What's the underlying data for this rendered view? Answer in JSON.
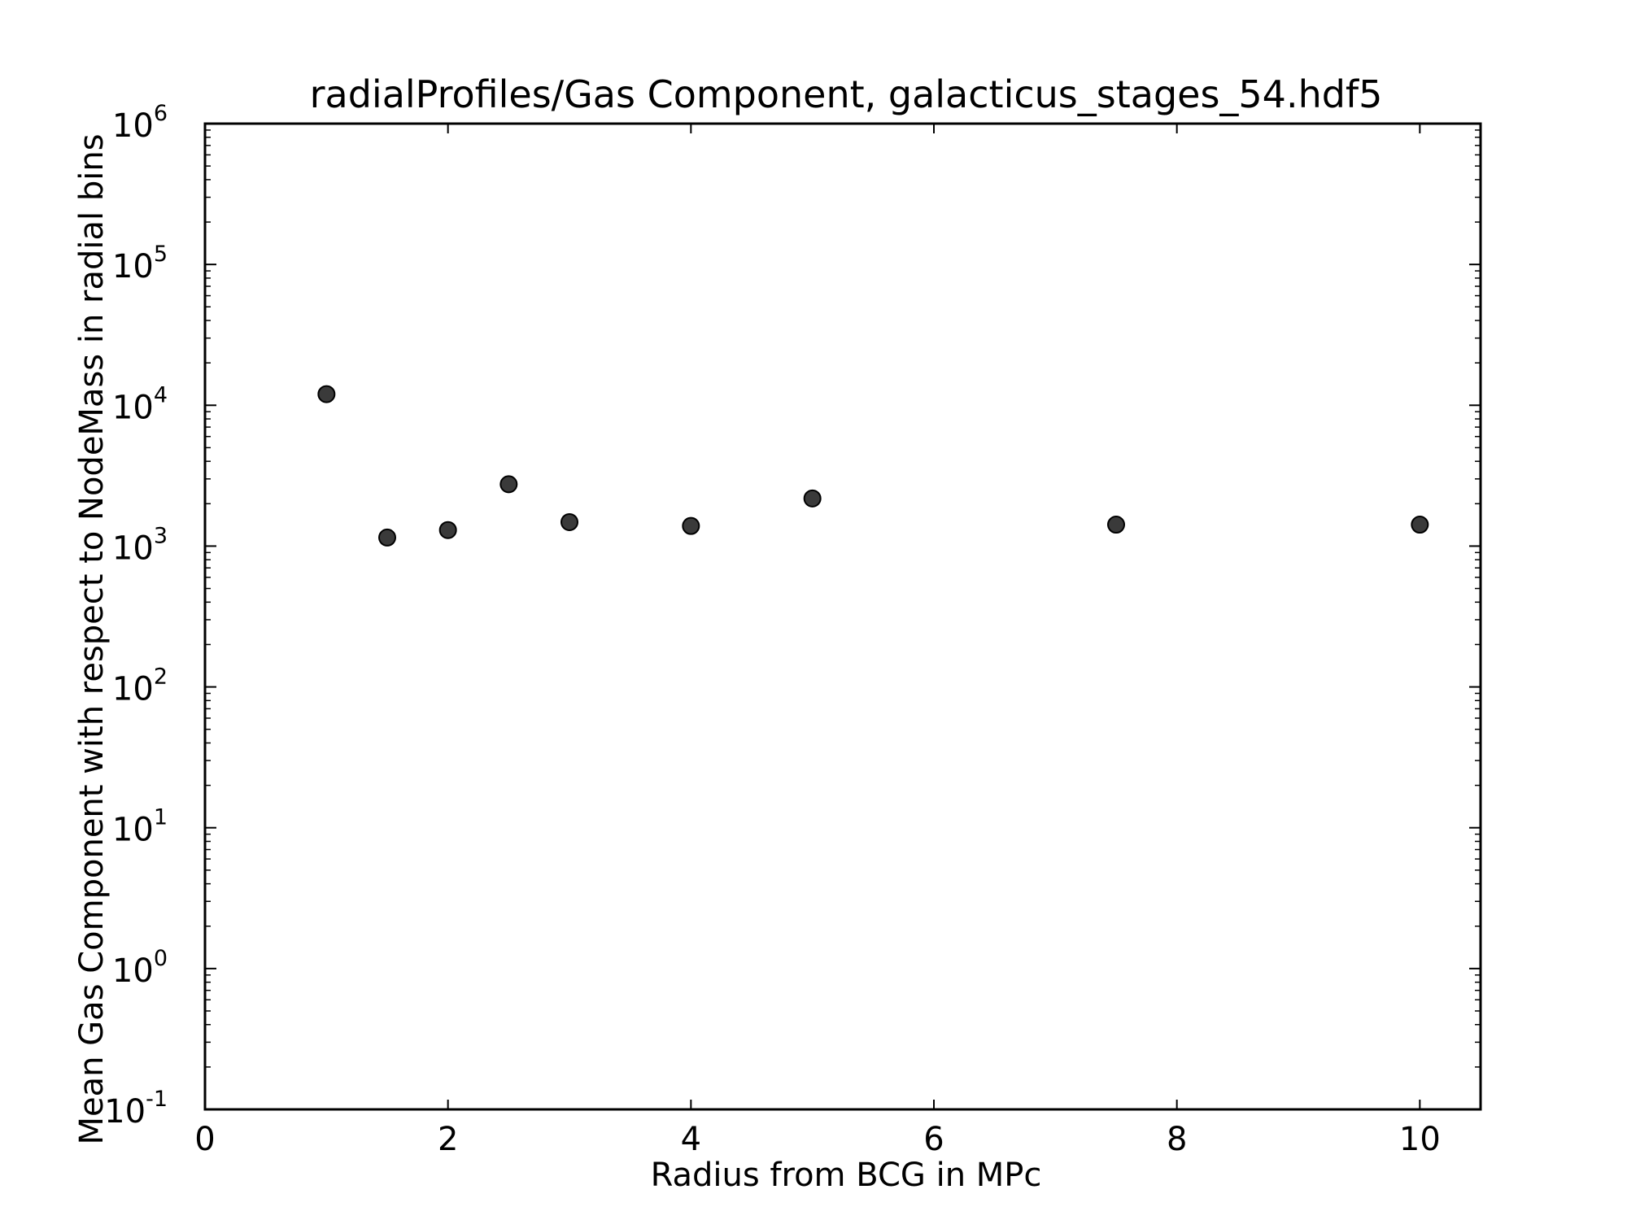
{
  "chart_data": {
    "type": "scatter",
    "title": "radialProfiles/Gas Component, galacticus_stages_54.hdf5",
    "xlabel": "Radius from BCG in MPc",
    "ylabel": "Mean Gas Component with respect to NodeMass in radial bins",
    "xlim": [
      0,
      10.5
    ],
    "ylim": [
      0.1,
      1000000
    ],
    "yscale": "log",
    "grid": false,
    "legend": "none",
    "x_ticks": [
      "0",
      "2",
      "4",
      "6",
      "8",
      "10"
    ],
    "y_ticks": [
      {
        "base": "10",
        "exp": "-1"
      },
      {
        "base": "10",
        "exp": "0"
      },
      {
        "base": "10",
        "exp": "1"
      },
      {
        "base": "10",
        "exp": "2"
      },
      {
        "base": "10",
        "exp": "3"
      },
      {
        "base": "10",
        "exp": "4"
      },
      {
        "base": "10",
        "exp": "5"
      },
      {
        "base": "10",
        "exp": "6"
      }
    ],
    "marker_color": "#3a3a3a",
    "points": [
      {
        "x": 1.0,
        "y": 12000
      },
      {
        "x": 1.5,
        "y": 1150
      },
      {
        "x": 2.0,
        "y": 1300
      },
      {
        "x": 2.5,
        "y": 2750
      },
      {
        "x": 3.0,
        "y": 1480
      },
      {
        "x": 4.0,
        "y": 1390
      },
      {
        "x": 5.0,
        "y": 2180
      },
      {
        "x": 7.5,
        "y": 1420
      },
      {
        "x": 10.0,
        "y": 1420
      }
    ]
  }
}
